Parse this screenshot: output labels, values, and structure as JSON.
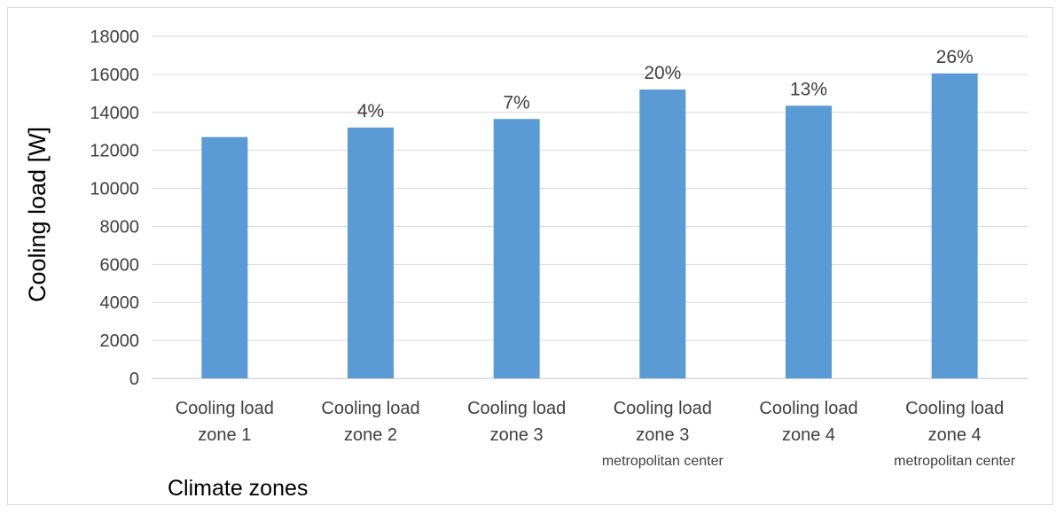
{
  "chart_data": {
    "type": "bar",
    "categories": [
      {
        "lines": [
          "Cooling load",
          "zone 1"
        ],
        "sub": ""
      },
      {
        "lines": [
          "Cooling load",
          "zone 2"
        ],
        "sub": ""
      },
      {
        "lines": [
          "Cooling load",
          "zone 3"
        ],
        "sub": ""
      },
      {
        "lines": [
          "Cooling load",
          "zone 3"
        ],
        "sub": "metropolitan center"
      },
      {
        "lines": [
          "Cooling load",
          "zone 4"
        ],
        "sub": ""
      },
      {
        "lines": [
          "Cooling load",
          "zone 4"
        ],
        "sub": "metropolitan center"
      }
    ],
    "values": [
      12700,
      13200,
      13650,
      15200,
      14350,
      16050
    ],
    "data_labels": [
      "",
      "4%",
      "7%",
      "20%",
      "13%",
      "26%"
    ],
    "xlabel": "Climate zones",
    "ylabel": "Cooling load [W]",
    "ylim": [
      0,
      18000
    ],
    "yticks": [
      "0",
      "2000",
      "4000",
      "6000",
      "8000",
      "10000",
      "12000",
      "14000",
      "16000",
      "18000"
    ],
    "grid": true,
    "legend": "none",
    "bar_color": "#5b9bd5"
  }
}
